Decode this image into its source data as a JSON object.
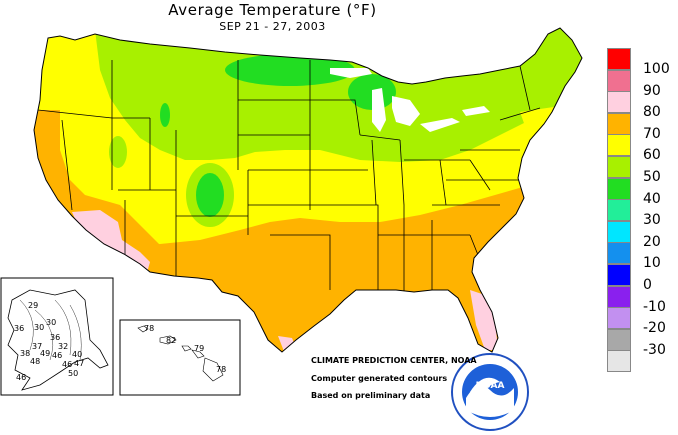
{
  "title": "Average Temperature (°F)",
  "subtitle": "SEP 21 - 27, 2003",
  "legend": [
    {
      "label": "100",
      "color": "#ff0000"
    },
    {
      "label": "90",
      "color": "#f07090"
    },
    {
      "label": "80",
      "color": "#ffd0e0"
    },
    {
      "label": "70",
      "color": "#ffb300"
    },
    {
      "label": "60",
      "color": "#ffff00"
    },
    {
      "label": "50",
      "color": "#a8f000"
    },
    {
      "label": "40",
      "color": "#22dd22"
    },
    {
      "label": "30",
      "color": "#22ee99"
    },
    {
      "label": "20",
      "color": "#00e6ff"
    },
    {
      "label": "10",
      "color": "#1490ee"
    },
    {
      "label": "0",
      "color": "#0000ff"
    },
    {
      "label": "-10",
      "color": "#8a20ee"
    },
    {
      "label": "-20",
      "color": "#c290f0"
    },
    {
      "label": "-30",
      "color": "#a8a8a8"
    },
    {
      "label": "",
      "color": "#e6e6e6"
    }
  ],
  "credits": {
    "line1": "CLIMATE PREDICTION CENTER, NOAA",
    "line2": "Computer generated contours",
    "line3": "Based on preliminary data"
  },
  "logo_text": "NOAA",
  "alaska_values": [
    "29",
    "30",
    "36",
    "30",
    "36",
    "37",
    "32",
    "49",
    "38",
    "46",
    "48",
    "40",
    "46",
    "47",
    "46",
    "50"
  ],
  "hawaii_values": [
    "78",
    "82",
    "79",
    "78"
  ]
}
